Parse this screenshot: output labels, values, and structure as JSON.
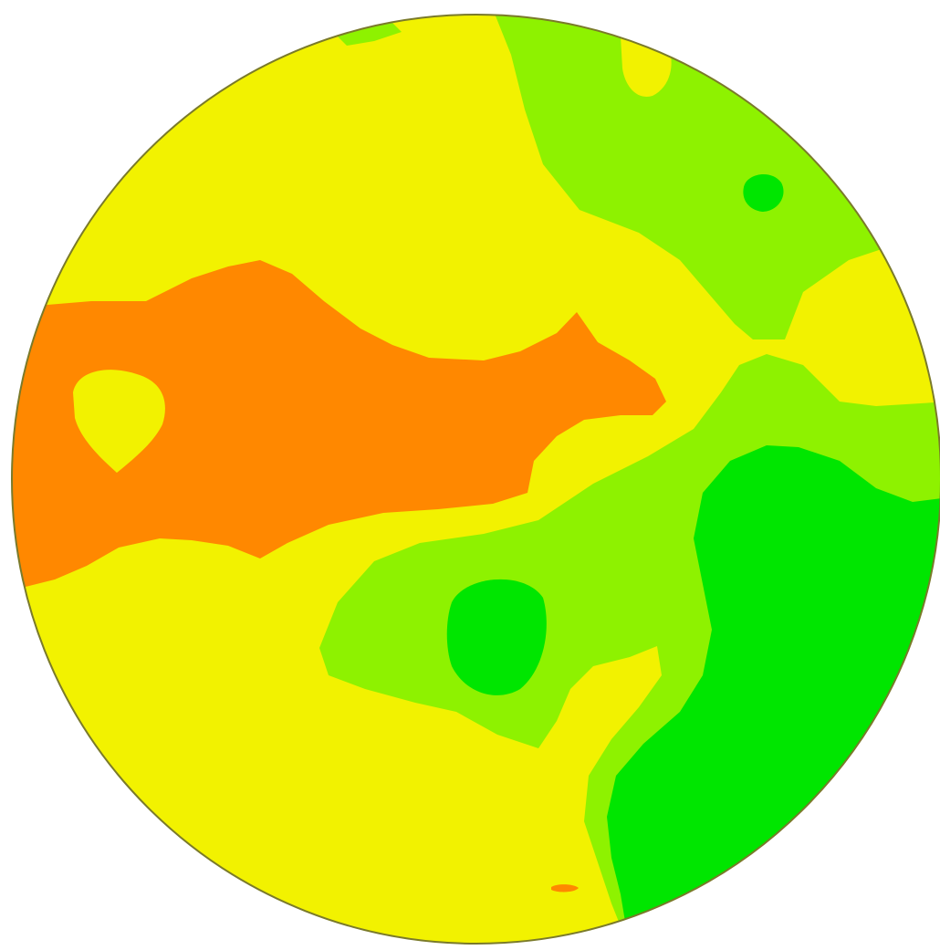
{
  "chart_data": {
    "type": "heatmap",
    "title": "",
    "xlabel": "",
    "ylabel": "",
    "legend": "none",
    "grid": false,
    "shape": "circle",
    "colors": {
      "background": "#ffffff",
      "outline": "#7a7a2a",
      "level_orange": "#ff8800",
      "level_yellow": "#f2f200",
      "level_lightgreen": "#8ef200",
      "level_green": "#00e600"
    },
    "levels": [
      {
        "name": "orange",
        "color": "#ff8800"
      },
      {
        "name": "yellow",
        "color": "#f2f200"
      },
      {
        "name": "light-green",
        "color": "#8ef200"
      },
      {
        "name": "green",
        "color": "#00e600"
      }
    ]
  }
}
